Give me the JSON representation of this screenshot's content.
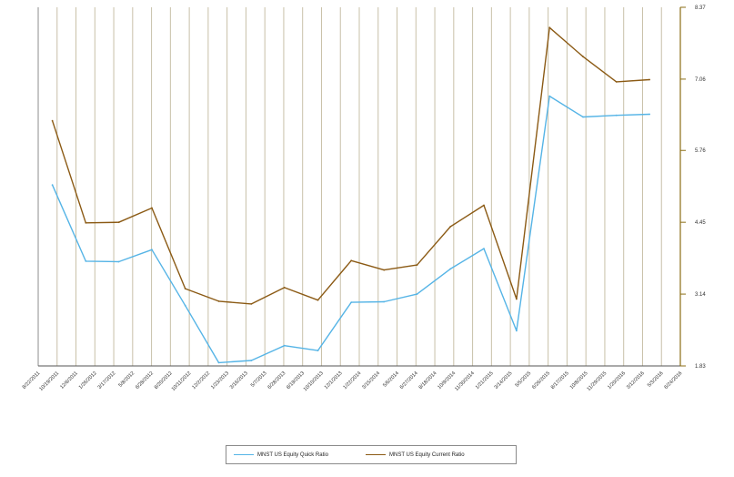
{
  "chart_data": {
    "type": "line",
    "title": "",
    "xlabel": "",
    "ylabel": "",
    "ylim": [
      1.83,
      8.37
    ],
    "y_ticks": [
      "1.83",
      "3.14",
      "4.45",
      "5.76",
      "7.06",
      "8.37"
    ],
    "y_axis_side": "right",
    "grid": "vertical",
    "legend_position": "bottom",
    "x_ticks": [
      "8/22/2011",
      "10/19/2011",
      "12/6/2011",
      "1/26/2012",
      "3/17/2012",
      "5/8/2012",
      "6/28/2012",
      "8/20/2012",
      "10/11/2012",
      "12/2/2012",
      "1/23/2013",
      "3/16/2013",
      "5/7/2013",
      "6/28/2013",
      "8/19/2013",
      "10/10/2013",
      "12/1/2013",
      "1/22/2014",
      "3/15/2014",
      "5/6/2014",
      "6/27/2014",
      "8/18/2014",
      "10/9/2014",
      "11/30/2014",
      "1/21/2015",
      "3/14/2015",
      "5/5/2015",
      "6/26/2015",
      "8/17/2015",
      "10/8/2015",
      "11/29/2015",
      "1/20/2016",
      "3/12/2016",
      "5/3/2016",
      "6/24/2016"
    ],
    "x": [
      "2011-09-30",
      "2011-12-31",
      "2012-03-31",
      "2012-06-30",
      "2012-09-30",
      "2012-12-31",
      "2013-03-31",
      "2013-06-30",
      "2013-09-30",
      "2013-12-31",
      "2014-03-31",
      "2014-06-30",
      "2014-09-30",
      "2014-12-31",
      "2015-03-31",
      "2015-06-30",
      "2015-09-30",
      "2015-12-31",
      "2016-03-31"
    ],
    "series": [
      {
        "name": "MNST US Equity Quick Ratio",
        "color": "#55b4e6",
        "values": [
          5.13,
          3.74,
          3.73,
          3.95,
          2.93,
          1.89,
          1.93,
          2.2,
          2.11,
          2.99,
          3.0,
          3.14,
          3.6,
          3.97,
          2.47,
          6.75,
          6.37,
          6.4,
          6.42
        ]
      },
      {
        "name": "MNST US Equity Current Ratio",
        "color": "#8b5a14",
        "values": [
          6.3,
          4.44,
          4.45,
          4.71,
          3.24,
          3.01,
          2.96,
          3.26,
          3.03,
          3.75,
          3.58,
          3.67,
          4.37,
          4.76,
          3.05,
          8.0,
          7.47,
          7.01,
          7.05
        ]
      }
    ]
  }
}
